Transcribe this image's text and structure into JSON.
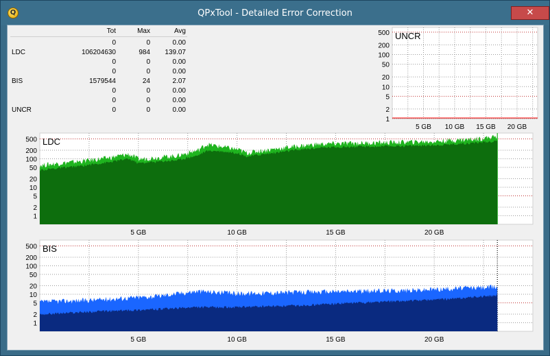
{
  "window": {
    "title": "QPxTool - Detailed Error Correction",
    "close_glyph": "✕",
    "app_icon_glyph": "Q"
  },
  "stats": {
    "headers": {
      "tot": "Tot",
      "max": "Max",
      "avg": "Avg"
    },
    "rows": [
      {
        "label": "",
        "tot": "0",
        "max": "0",
        "avg": "0.00"
      },
      {
        "label": "LDC",
        "tot": "106204630",
        "max": "984",
        "avg": "139.07"
      },
      {
        "label": "",
        "tot": "0",
        "max": "0",
        "avg": "0.00"
      },
      {
        "label": "",
        "tot": "0",
        "max": "0",
        "avg": "0.00"
      },
      {
        "label": "BIS",
        "tot": "1579544",
        "max": "24",
        "avg": "2.07"
      },
      {
        "label": "",
        "tot": "0",
        "max": "0",
        "avg": "0.00"
      },
      {
        "label": "",
        "tot": "0",
        "max": "0",
        "avg": "0.00"
      },
      {
        "label": "UNCR",
        "tot": "0",
        "max": "0",
        "avg": "0.00"
      }
    ]
  },
  "chart_data": [
    {
      "type": "line",
      "title": "UNCR",
      "y_scale": "log",
      "ylim": [
        1,
        700
      ],
      "xlim": [
        0,
        23.3
      ],
      "y_ticks": [
        "500",
        "200",
        "100",
        "50",
        "20",
        "10",
        "5",
        "2",
        "1"
      ],
      "x_ticks": [
        "5 GB",
        "10 GB",
        "15 GB",
        "20 GB"
      ],
      "series": [
        {
          "color": "#ff0000",
          "x": [
            0,
            23.3
          ],
          "y": [
            0,
            0
          ]
        }
      ]
    },
    {
      "type": "area",
      "title": "LDC",
      "y_scale": "log",
      "ylim": [
        0.5,
        800
      ],
      "xlim": [
        0,
        25
      ],
      "y_ticks": [
        "500",
        "200",
        "100",
        "50",
        "20",
        "10",
        "5",
        "2",
        "1"
      ],
      "x_ticks": [
        "5 GB",
        "10 GB",
        "15 GB",
        "20 GB"
      ],
      "series": [
        {
          "color": "#1fb41f",
          "x": [
            0,
            2,
            3.5,
            4.5,
            5,
            7,
            8,
            8.5,
            9,
            10,
            10.5,
            12,
            14,
            15,
            17,
            20,
            22,
            23.2
          ],
          "y": [
            55,
            75,
            100,
            135,
            90,
            120,
            180,
            300,
            260,
            200,
            150,
            210,
            300,
            320,
            340,
            380,
            460,
            560
          ]
        },
        {
          "color": "#0d6e0d",
          "x": [
            0,
            2,
            3.5,
            4.5,
            5,
            7,
            8,
            8.5,
            9,
            10,
            10.5,
            12,
            14,
            15,
            17,
            20,
            22,
            23.2
          ],
          "y": [
            40,
            55,
            75,
            100,
            70,
            90,
            130,
            190,
            190,
            160,
            120,
            165,
            240,
            260,
            270,
            300,
            360,
            420
          ]
        }
      ]
    },
    {
      "type": "area",
      "title": "BIS",
      "y_scale": "log",
      "ylim": [
        0.5,
        800
      ],
      "xlim": [
        0,
        25
      ],
      "y_ticks": [
        "500",
        "200",
        "100",
        "50",
        "20",
        "10",
        "5",
        "2",
        "1"
      ],
      "x_ticks": [
        "5 GB",
        "10 GB",
        "15 GB",
        "20 GB"
      ],
      "series": [
        {
          "color": "#1a66ff",
          "x": [
            0,
            3,
            6,
            8,
            10,
            13,
            16,
            19,
            21,
            23.2
          ],
          "y": [
            5,
            6,
            8,
            12,
            10,
            11,
            12,
            13,
            15,
            17
          ]
        },
        {
          "color": "#0a2a80",
          "x": [
            0,
            3,
            6,
            8,
            10,
            13,
            16,
            19,
            21,
            23.2
          ],
          "y": [
            2,
            2.5,
            3,
            3.5,
            3.5,
            4,
            5,
            6,
            7,
            9
          ]
        }
      ]
    }
  ]
}
